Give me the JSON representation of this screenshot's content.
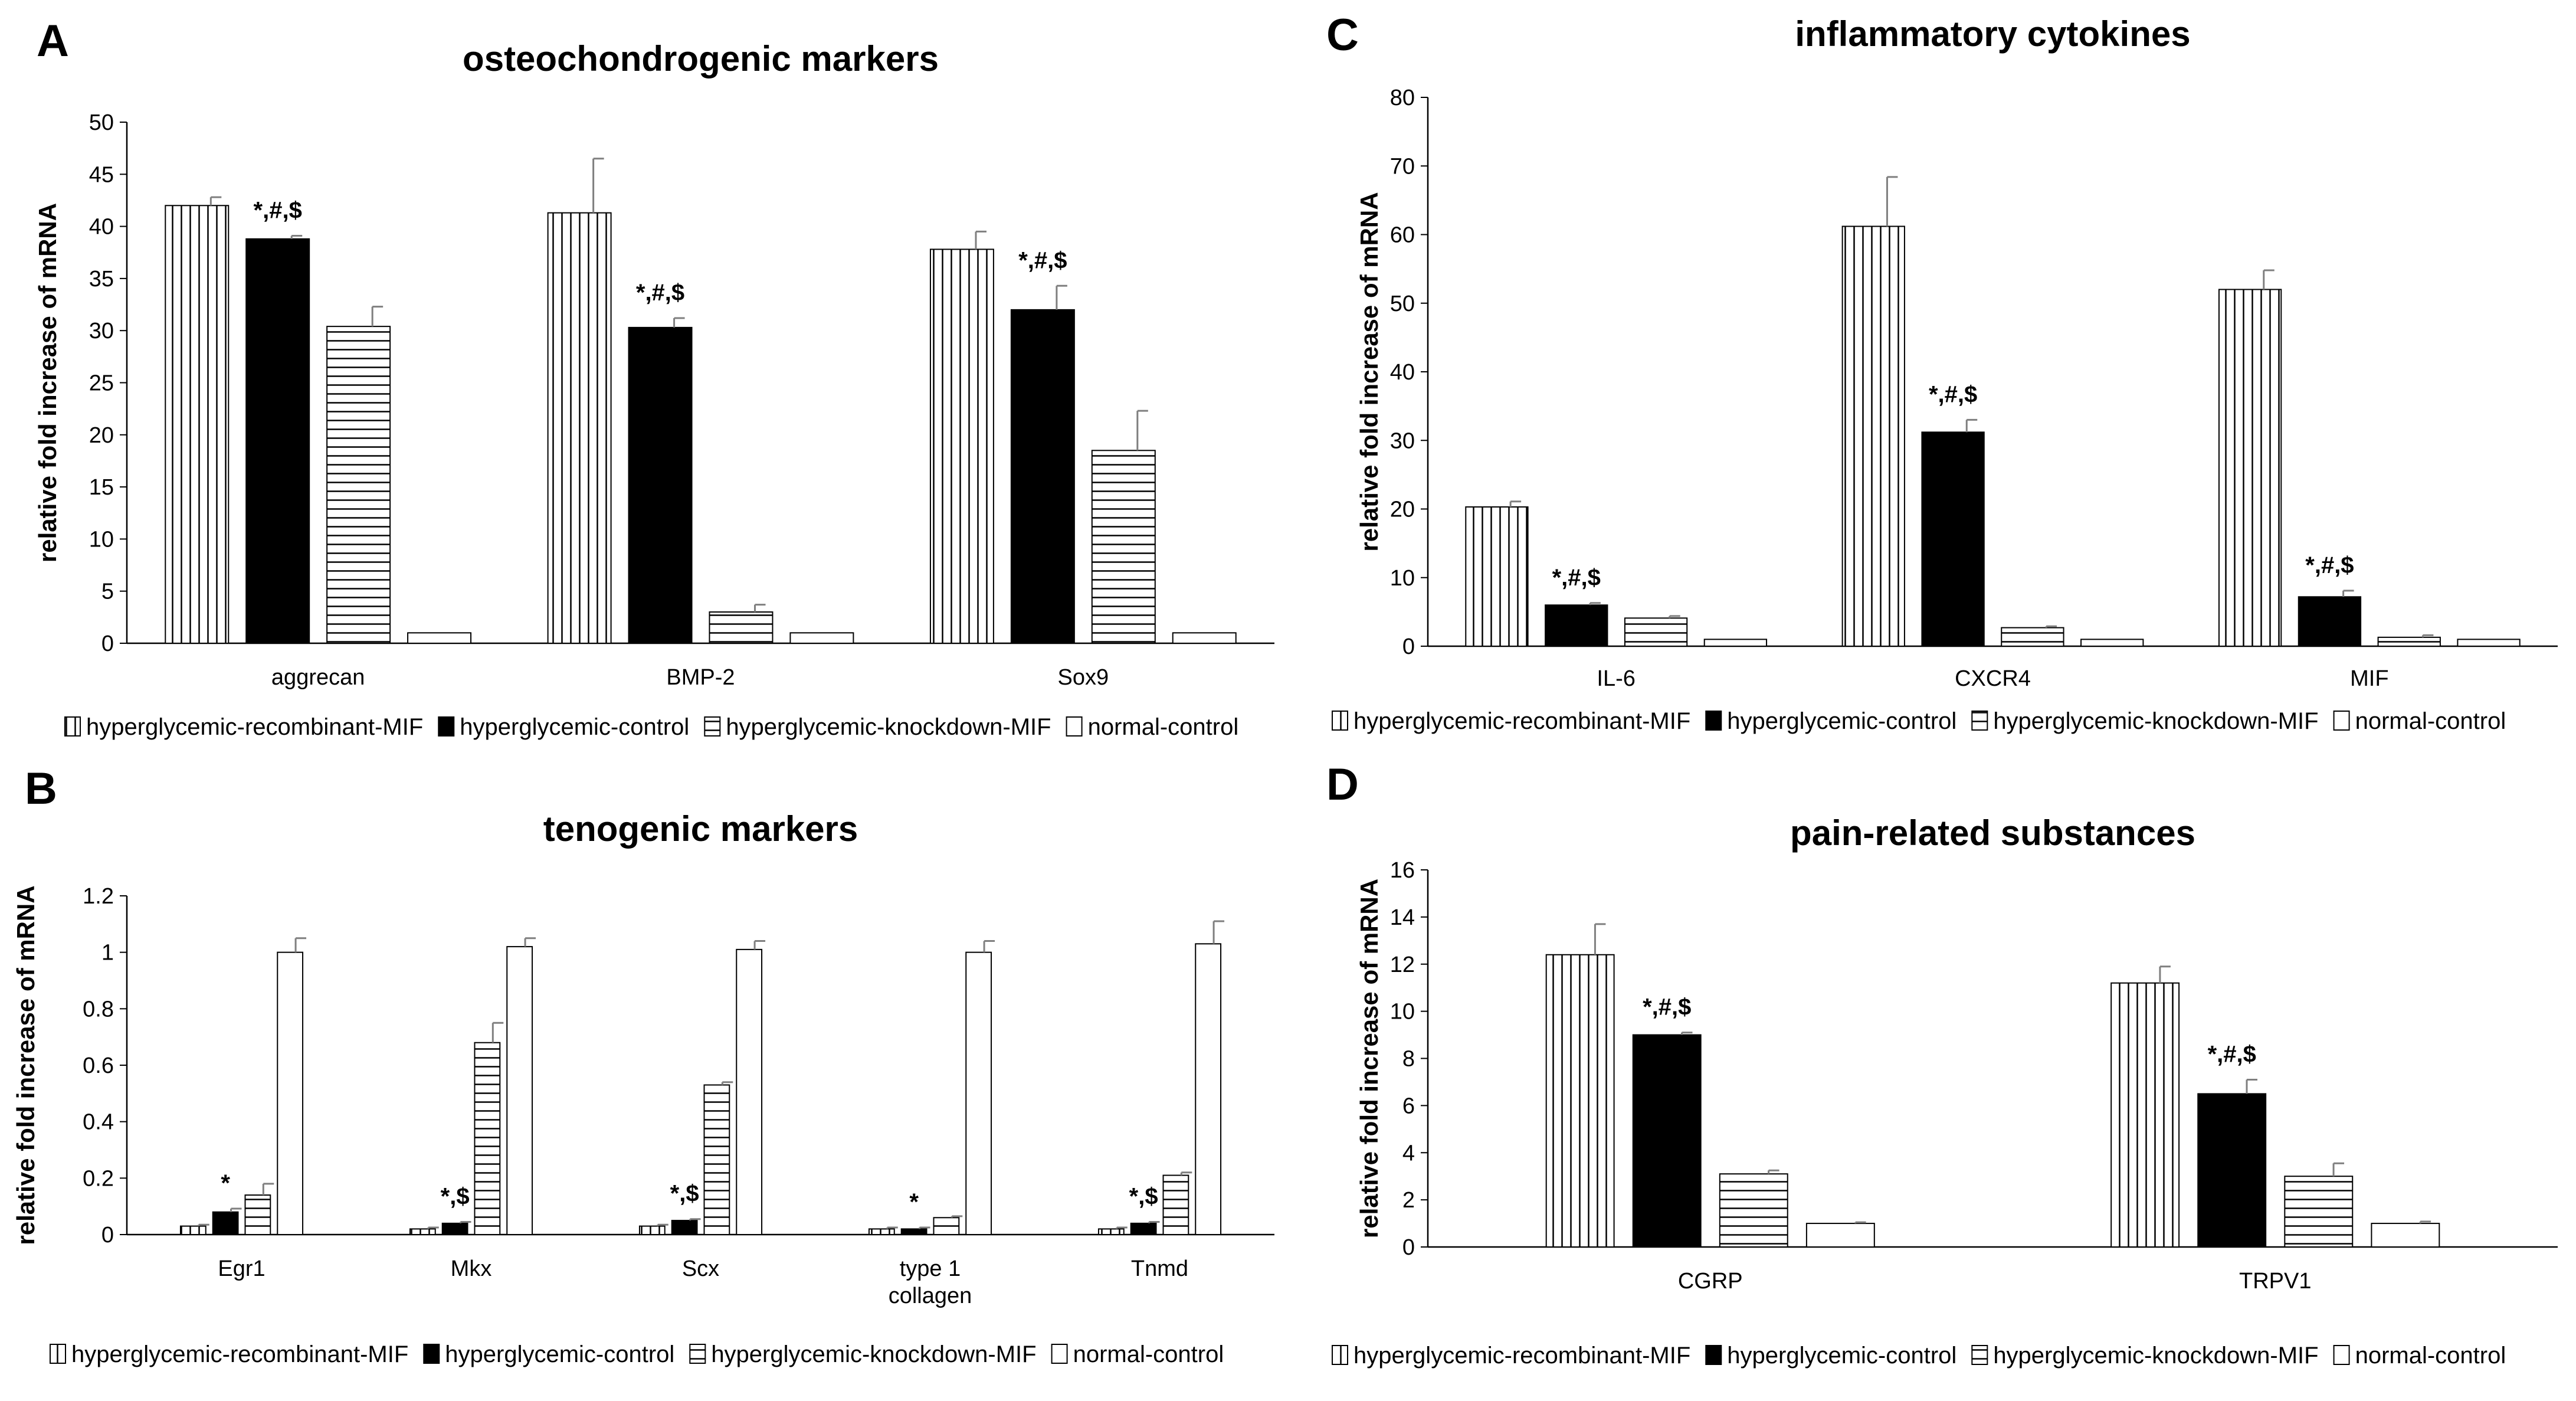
{
  "legend": [
    {
      "key": "rec",
      "label": "hyperglycemic-recombinant-MIF",
      "pattern": "vertical"
    },
    {
      "key": "ctrl",
      "label": "hyperglycemic-control",
      "pattern": "solid"
    },
    {
      "key": "kd",
      "label": "hyperglycemic-knockdown-MIF",
      "pattern": "horizontal"
    },
    {
      "key": "norm",
      "label": "normal-control",
      "pattern": "empty"
    }
  ],
  "chart_data": [
    {
      "panel": "A",
      "type": "bar",
      "title": "osteochondrogenic markers",
      "ylabel": "relative fold increase of  mRNA",
      "ylim": [
        0,
        50
      ],
      "yticks": [
        0,
        5,
        10,
        15,
        20,
        25,
        30,
        35,
        40,
        45,
        50
      ],
      "categories": [
        "aggrecan",
        "BMP-2",
        "Sox9"
      ],
      "series": [
        {
          "name": "hyperglycemic-recombinant-MIF",
          "values": [
            42.0,
            41.3,
            37.8
          ],
          "errors": [
            0.8,
            5.2,
            1.7
          ]
        },
        {
          "name": "hyperglycemic-control",
          "values": [
            38.8,
            30.3,
            32.0
          ],
          "errors": [
            0.3,
            0.9,
            2.3
          ]
        },
        {
          "name": "hyperglycemic-knockdown-MIF",
          "values": [
            30.4,
            3.0,
            18.5
          ],
          "errors": [
            1.9,
            0.7,
            3.8
          ]
        },
        {
          "name": "normal-control",
          "values": [
            1.0,
            1.0,
            1.0
          ],
          "errors": [
            0,
            0,
            0
          ]
        }
      ],
      "annotations": [
        {
          "category": 0,
          "series": 1,
          "text": "*,#,$"
        },
        {
          "category": 1,
          "series": 1,
          "text": "*,#,$"
        },
        {
          "category": 2,
          "series": 1,
          "text": "*,#,$"
        }
      ]
    },
    {
      "panel": "B",
      "type": "bar",
      "title": "tenogenic markers",
      "ylabel": "relative fold increase of  mRNA",
      "ylim": [
        0,
        1.2
      ],
      "yticks": [
        0,
        0.2,
        0.4,
        0.6,
        0.8,
        1,
        1.2
      ],
      "categories": [
        "Egr1",
        "Mkx",
        "Scx",
        "type 1 collagen",
        "Tnmd"
      ],
      "series": [
        {
          "name": "hyperglycemic-recombinant-MIF",
          "values": [
            0.03,
            0.02,
            0.03,
            0.02,
            0.02
          ],
          "errors": [
            0.005,
            0.005,
            0.005,
            0.005,
            0.005
          ]
        },
        {
          "name": "hyperglycemic-control",
          "values": [
            0.08,
            0.04,
            0.05,
            0.02,
            0.04
          ],
          "errors": [
            0.012,
            0.005,
            0.005,
            0.005,
            0.005
          ]
        },
        {
          "name": "hyperglycemic-knockdown-MIF",
          "values": [
            0.14,
            0.68,
            0.53,
            0.06,
            0.21
          ],
          "errors": [
            0.04,
            0.07,
            0.01,
            0.005,
            0.01
          ]
        },
        {
          "name": "normal-control",
          "values": [
            1.0,
            1.02,
            1.01,
            1.0,
            1.03
          ],
          "errors": [
            0.05,
            0.03,
            0.03,
            0.04,
            0.08
          ]
        }
      ],
      "annotations": [
        {
          "category": 0,
          "series": 1,
          "text": "*"
        },
        {
          "category": 1,
          "series": 1,
          "text": "*,$"
        },
        {
          "category": 2,
          "series": 1,
          "text": "*,$"
        },
        {
          "category": 3,
          "series": 1,
          "text": "*"
        },
        {
          "category": 4,
          "series": 1,
          "text": "*,$"
        }
      ]
    },
    {
      "panel": "C",
      "type": "bar",
      "title": "inflammatory cytokines",
      "ylabel": "relative fold increase of  mRNA",
      "ylim": [
        0,
        80
      ],
      "yticks": [
        0,
        10,
        20,
        30,
        40,
        50,
        60,
        70,
        80
      ],
      "categories": [
        "IL-6",
        "CXCR4",
        "MIF"
      ],
      "series": [
        {
          "name": "hyperglycemic-recombinant-MIF",
          "values": [
            20.3,
            61.2,
            52.0
          ],
          "errors": [
            0.8,
            7.2,
            2.8
          ]
        },
        {
          "name": "hyperglycemic-control",
          "values": [
            6.0,
            31.2,
            7.2
          ],
          "errors": [
            0.3,
            1.8,
            0.9
          ]
        },
        {
          "name": "hyperglycemic-knockdown-MIF",
          "values": [
            4.1,
            2.7,
            1.3
          ],
          "errors": [
            0.3,
            0.2,
            0.3
          ]
        },
        {
          "name": "normal-control",
          "values": [
            1.0,
            1.0,
            1.0
          ],
          "errors": [
            0,
            0,
            0
          ]
        }
      ],
      "annotations": [
        {
          "category": 0,
          "series": 1,
          "text": "*,#,$"
        },
        {
          "category": 1,
          "series": 1,
          "text": "*,#,$"
        },
        {
          "category": 2,
          "series": 1,
          "text": "*,#,$"
        }
      ]
    },
    {
      "panel": "D",
      "type": "bar",
      "title": "pain-related substances",
      "ylabel": "relative fold increase of  mRNA",
      "ylim": [
        0,
        16
      ],
      "yticks": [
        0,
        2,
        4,
        6,
        8,
        10,
        12,
        14,
        16
      ],
      "categories": [
        "CGRP",
        "TRPV1"
      ],
      "series": [
        {
          "name": "hyperglycemic-recombinant-MIF",
          "values": [
            12.4,
            11.2
          ],
          "errors": [
            1.3,
            0.7
          ]
        },
        {
          "name": "hyperglycemic-control",
          "values": [
            9.0,
            6.5
          ],
          "errors": [
            0.1,
            0.6
          ]
        },
        {
          "name": "hyperglycemic-knockdown-MIF",
          "values": [
            3.1,
            3.0
          ],
          "errors": [
            0.15,
            0.55
          ]
        },
        {
          "name": "normal-control",
          "values": [
            1.0,
            1.0
          ],
          "errors": [
            0.05,
            0.08
          ]
        }
      ],
      "annotations": [
        {
          "category": 0,
          "series": 1,
          "text": "*,#,$"
        },
        {
          "category": 1,
          "series": 1,
          "text": "*,#,$"
        }
      ]
    }
  ]
}
